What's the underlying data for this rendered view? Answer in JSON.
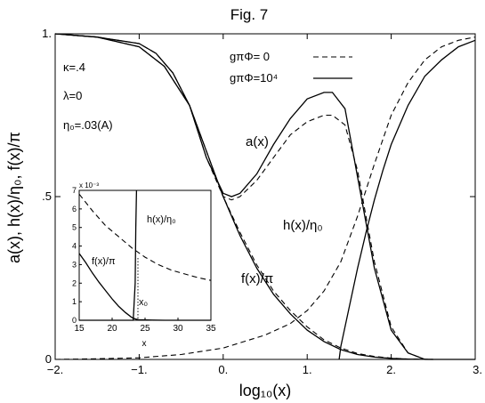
{
  "chart_data": {
    "type": "line",
    "title": "Fig. 7",
    "xlabel": "log₁₀(x)",
    "ylabel": "a(x), h(x)/η₀, f(x)/π",
    "xlim": [
      -2,
      3
    ],
    "ylim": [
      0,
      1
    ],
    "xticks": [
      "−2.",
      "−1.",
      "0.",
      "1.",
      "2.",
      "3."
    ],
    "yticks": [
      "0",
      ".5",
      "1."
    ],
    "grid": false,
    "legend": {
      "placement": "top-right",
      "entries": [
        {
          "label": "gπΦ= 0",
          "style": "dashed"
        },
        {
          "label": "gπΦ=10⁴",
          "style": "solid"
        }
      ]
    },
    "parameters": [
      "κ=.4",
      "λ=0",
      "η₀=.03(A)"
    ],
    "annotations": [
      "a(x)",
      "h(x)/η₀",
      "f(x)/π"
    ],
    "series": [
      {
        "name": "a(x)",
        "style": "solid",
        "x": [
          -2,
          -1.5,
          -1,
          -0.7,
          -0.4,
          -0.2,
          0,
          0.1,
          0.2,
          0.4,
          0.6,
          0.8,
          1.0,
          1.2,
          1.3,
          1.45,
          1.6,
          1.8,
          2.0,
          2.2,
          2.4,
          2.6,
          3.0
        ],
        "y": [
          1.0,
          0.99,
          0.96,
          0.9,
          0.78,
          0.62,
          0.51,
          0.5,
          0.51,
          0.57,
          0.66,
          0.74,
          0.8,
          0.82,
          0.82,
          0.77,
          0.56,
          0.28,
          0.09,
          0.02,
          0.0,
          0.0,
          0.0
        ]
      },
      {
        "name": "a(x)",
        "style": "dashed",
        "x": [
          -2,
          -1.5,
          -1,
          -0.7,
          -0.4,
          -0.2,
          0,
          0.1,
          0.2,
          0.4,
          0.6,
          0.8,
          1.0,
          1.2,
          1.3,
          1.45,
          1.6,
          1.8,
          2.0,
          2.2,
          2.4,
          2.6,
          3.0
        ],
        "y": [
          1.0,
          0.99,
          0.96,
          0.9,
          0.78,
          0.62,
          0.5,
          0.49,
          0.5,
          0.55,
          0.62,
          0.69,
          0.73,
          0.75,
          0.75,
          0.72,
          0.58,
          0.3,
          0.1,
          0.02,
          0.0,
          0.0,
          0.0
        ]
      },
      {
        "name": "f(x)/π",
        "style": "solid",
        "x": [
          -2,
          -1.5,
          -1,
          -0.8,
          -0.6,
          -0.4,
          -0.2,
          0,
          0.2,
          0.4,
          0.6,
          0.8,
          1.0,
          1.2,
          1.4,
          1.6,
          1.8,
          2.0,
          2.2,
          2.5
        ],
        "y": [
          1.0,
          0.99,
          0.97,
          0.94,
          0.88,
          0.78,
          0.64,
          0.5,
          0.38,
          0.28,
          0.2,
          0.14,
          0.09,
          0.055,
          0.03,
          0.015,
          0.007,
          0.003,
          0.001,
          0.0
        ]
      },
      {
        "name": "f(x)/π",
        "style": "dashed",
        "x": [
          -2,
          -1.5,
          -1,
          -0.8,
          -0.6,
          -0.4,
          -0.2,
          0,
          0.2,
          0.4,
          0.6,
          0.8,
          1.0,
          1.2,
          1.4,
          1.6,
          1.8,
          2.0,
          2.2,
          2.5
        ],
        "y": [
          1.0,
          0.99,
          0.97,
          0.94,
          0.88,
          0.78,
          0.64,
          0.5,
          0.39,
          0.29,
          0.21,
          0.15,
          0.1,
          0.06,
          0.035,
          0.018,
          0.009,
          0.004,
          0.001,
          0.0
        ]
      },
      {
        "name": "h(x)/η₀",
        "style": "dashed",
        "x": [
          -2,
          -1.5,
          -1,
          -0.5,
          0,
          0.5,
          0.8,
          1.0,
          1.2,
          1.4,
          1.6,
          1.8,
          2.0,
          2.2,
          2.4,
          2.6,
          2.8,
          3.0
        ],
        "y": [
          0.0,
          0.002,
          0.005,
          0.015,
          0.035,
          0.075,
          0.11,
          0.15,
          0.21,
          0.3,
          0.44,
          0.6,
          0.75,
          0.85,
          0.92,
          0.96,
          0.98,
          0.99
        ]
      },
      {
        "name": "h(x)/η₀",
        "style": "solid",
        "x": [
          1.38,
          1.4,
          1.5,
          1.6,
          1.7,
          1.8,
          1.9,
          2.0,
          2.2,
          2.4,
          2.6,
          2.8,
          3.0
        ],
        "y": [
          0.0,
          0.04,
          0.16,
          0.28,
          0.39,
          0.49,
          0.58,
          0.66,
          0.78,
          0.87,
          0.92,
          0.96,
          0.98
        ]
      }
    ],
    "inset": {
      "xlabel": "x",
      "xlim": [
        15,
        35
      ],
      "ylim": [
        0,
        7
      ],
      "xticks": [
        "15",
        "20",
        "25",
        "30",
        "35"
      ],
      "yticks": [
        "0",
        "1",
        "2",
        "3",
        "4",
        "5",
        "6",
        "7"
      ],
      "multiplier": "x 10⁻³",
      "annotations": [
        "h(x)/η₀",
        "f(x)/π",
        "x₀"
      ],
      "series": [
        {
          "name": "f(x)/π",
          "style": "dashed",
          "x": [
            15,
            17,
            19,
            21,
            23,
            25,
            27,
            29,
            31,
            33,
            35
          ],
          "y": [
            6.8,
            5.9,
            5.1,
            4.5,
            3.9,
            3.4,
            3.0,
            2.7,
            2.5,
            2.3,
            2.15
          ]
        },
        {
          "name": "f(x)/π",
          "style": "solid",
          "x": [
            15,
            16,
            17,
            18,
            19,
            20,
            21,
            22,
            23,
            23.5,
            24,
            26,
            28,
            30,
            32,
            35
          ],
          "y": [
            3.6,
            3.1,
            2.55,
            2.05,
            1.6,
            1.15,
            0.75,
            0.42,
            0.15,
            0.07,
            0.03,
            0.01,
            0.0,
            0.0,
            0.0,
            0.0
          ]
        },
        {
          "name": "h(x)/η₀",
          "style": "solid",
          "x": [
            15,
            20,
            23.2,
            23.5,
            23.6,
            23.7
          ],
          "y": [
            0.0,
            0.0,
            0.0,
            2.0,
            5.0,
            7.0
          ]
        }
      ]
    }
  }
}
